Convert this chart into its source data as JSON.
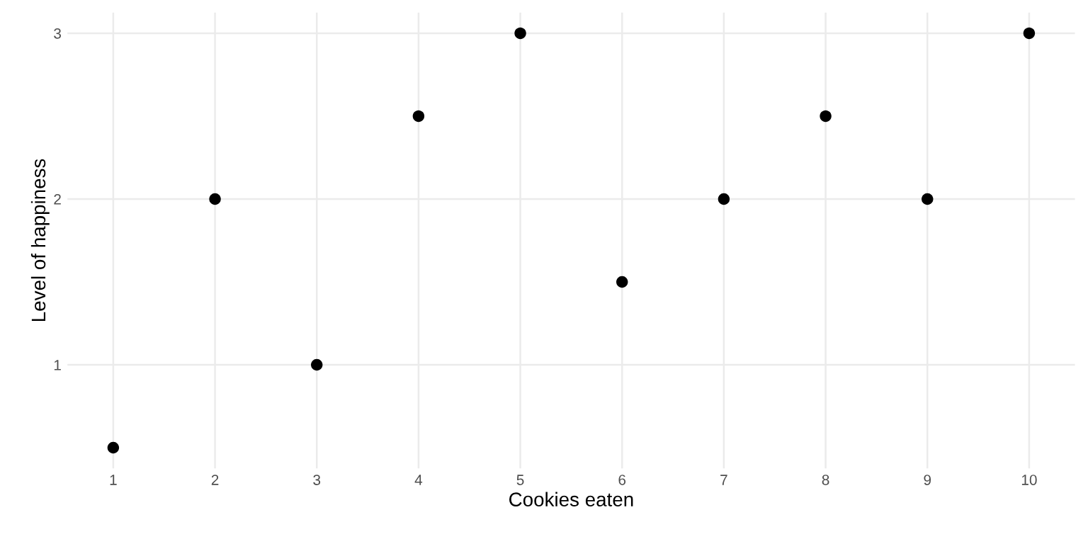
{
  "chart_data": {
    "type": "scatter",
    "xlabel": "Cookies eaten",
    "ylabel": "Level of happiness",
    "x": [
      1,
      2,
      3,
      4,
      5,
      6,
      7,
      8,
      9,
      10
    ],
    "series": [
      {
        "color": "#000000",
        "values": [
          0.5,
          2,
          1,
          2.5,
          3,
          1.5,
          2,
          2.5,
          2,
          3
        ]
      }
    ],
    "xlim": [
      0.55,
      10.45
    ],
    "ylim": [
      0.375,
      3.125
    ],
    "xticks": [
      1,
      2,
      3,
      4,
      5,
      6,
      7,
      8,
      9,
      10
    ],
    "yticks": [
      1,
      2,
      3
    ],
    "grid": true,
    "marker": "circle",
    "legend": false
  }
}
